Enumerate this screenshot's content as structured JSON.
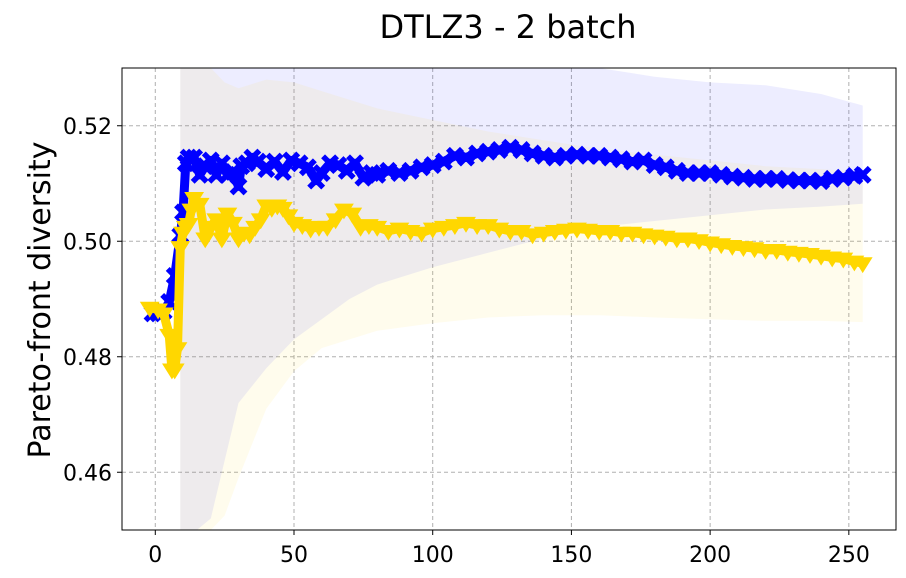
{
  "chart_data": {
    "type": "line",
    "title": "DTLZ3 - 2 batch",
    "xlabel": "",
    "ylabel": "Pareto-front diversity",
    "xlim": [
      -12,
      267
    ],
    "ylim": [
      0.45,
      0.53
    ],
    "grid": true,
    "x_ticks": [
      0,
      50,
      100,
      150,
      200,
      250
    ],
    "y_ticks": [
      0.46,
      0.48,
      0.5,
      0.52
    ],
    "y_tick_labels": [
      "0.46",
      "0.48",
      "0.50",
      "0.52"
    ],
    "series": [
      {
        "color": "#0000ff",
        "marker": "x",
        "x": [
          -1,
          1,
          3,
          5,
          7,
          9,
          10,
          11,
          12,
          14,
          16,
          18,
          20,
          22,
          24,
          26,
          28,
          30,
          31,
          33,
          35,
          37,
          40,
          43,
          46,
          49,
          52,
          55,
          58,
          60,
          63,
          66,
          69,
          72,
          75,
          78,
          80,
          84,
          88,
          92,
          96,
          100,
          104,
          108,
          112,
          116,
          120,
          124,
          128,
          132,
          136,
          140,
          144,
          148,
          152,
          156,
          160,
          164,
          168,
          172,
          176,
          180,
          184,
          188,
          192,
          196,
          200,
          204,
          208,
          212,
          216,
          220,
          224,
          228,
          232,
          236,
          240,
          244,
          248,
          252,
          255
        ],
        "y": [
          0.4875,
          0.4875,
          0.4878,
          0.4895,
          0.494,
          0.501,
          0.505,
          0.5135,
          0.5145,
          0.5145,
          0.5115,
          0.513,
          0.514,
          0.5115,
          0.5135,
          0.5115,
          0.512,
          0.5095,
          0.513,
          0.5135,
          0.5145,
          0.5138,
          0.5125,
          0.5138,
          0.512,
          0.514,
          0.5135,
          0.5128,
          0.5105,
          0.5118,
          0.5135,
          0.5132,
          0.5122,
          0.5135,
          0.511,
          0.5118,
          0.5115,
          0.5122,
          0.5118,
          0.5122,
          0.5128,
          0.5132,
          0.5138,
          0.5148,
          0.5145,
          0.5152,
          0.5155,
          0.5158,
          0.5162,
          0.5158,
          0.5152,
          0.5148,
          0.5145,
          0.5148,
          0.515,
          0.5148,
          0.5148,
          0.5145,
          0.5142,
          0.5138,
          0.514,
          0.5132,
          0.5128,
          0.5122,
          0.5118,
          0.5118,
          0.5118,
          0.5115,
          0.5112,
          0.511,
          0.5108,
          0.5108,
          0.5108,
          0.5106,
          0.5105,
          0.5105,
          0.5104,
          0.5108,
          0.511,
          0.5113,
          0.5115
        ]
      },
      {
        "color": "#ffd700",
        "marker": "v",
        "x": [
          -2,
          1,
          3,
          5,
          6,
          7,
          8,
          9,
          10,
          11,
          12,
          13,
          14,
          16,
          18,
          20,
          22,
          24,
          26,
          28,
          30,
          32,
          34,
          36,
          38,
          40,
          42,
          44,
          46,
          48,
          50,
          53,
          56,
          59,
          62,
          65,
          68,
          71,
          74,
          77,
          80,
          84,
          88,
          92,
          96,
          100,
          104,
          108,
          112,
          116,
          120,
          124,
          128,
          132,
          136,
          140,
          144,
          148,
          152,
          156,
          160,
          164,
          168,
          172,
          176,
          180,
          184,
          188,
          192,
          196,
          200,
          204,
          208,
          212,
          216,
          220,
          224,
          228,
          232,
          236,
          240,
          244,
          248,
          252,
          255
        ],
        "y": [
          0.4885,
          0.4882,
          0.4875,
          0.4838,
          0.4778,
          0.4778,
          0.4815,
          0.499,
          0.5015,
          0.5025,
          0.503,
          0.5055,
          0.5075,
          0.5065,
          0.5005,
          0.5025,
          0.5038,
          0.5005,
          0.5048,
          0.5032,
          0.5005,
          0.5015,
          0.5012,
          0.5025,
          0.5038,
          0.5062,
          0.5058,
          0.5062,
          0.5058,
          0.5045,
          0.5032,
          0.5028,
          0.5022,
          0.5025,
          0.5025,
          0.5038,
          0.5055,
          0.5048,
          0.5025,
          0.5028,
          0.5025,
          0.5018,
          0.5022,
          0.5018,
          0.5015,
          0.5022,
          0.5025,
          0.5028,
          0.5032,
          0.5028,
          0.5028,
          0.5022,
          0.5018,
          0.5018,
          0.5012,
          0.5015,
          0.5018,
          0.502,
          0.5022,
          0.502,
          0.5018,
          0.5018,
          0.5015,
          0.5015,
          0.5012,
          0.501,
          0.5008,
          0.5005,
          0.5005,
          0.5002,
          0.4998,
          0.4995,
          0.4992,
          0.499,
          0.4988,
          0.4985,
          0.4985,
          0.4982,
          0.498,
          0.4978,
          0.4975,
          0.4972,
          0.497,
          0.4965,
          0.4962
        ]
      }
    ],
    "bands": [
      {
        "color": "#0000ff",
        "opacity": 0.07,
        "x": [
          9,
          10,
          12,
          15,
          20,
          25,
          30,
          40,
          50,
          60,
          70,
          80,
          100,
          120,
          140,
          160,
          180,
          200,
          220,
          240,
          255
        ],
        "upper": [
          0.53,
          0.53,
          0.53,
          0.53,
          0.53,
          0.53,
          0.53,
          0.53,
          0.53,
          0.53,
          0.53,
          0.53,
          0.53,
          0.53,
          0.53,
          0.53,
          0.5285,
          0.5275,
          0.527,
          0.5255,
          0.5235
        ],
        "lower": [
          0.45,
          0.45,
          0.45,
          0.45,
          0.452,
          0.462,
          0.472,
          0.478,
          0.483,
          0.4865,
          0.49,
          0.4925,
          0.4955,
          0.498,
          0.5005,
          0.5025,
          0.5035,
          0.5045,
          0.5055,
          0.506,
          0.5065
        ]
      },
      {
        "color": "#ffd700",
        "opacity": 0.07,
        "x": [
          9,
          10,
          12,
          15,
          20,
          25,
          30,
          40,
          50,
          60,
          70,
          80,
          100,
          120,
          140,
          160,
          180,
          200,
          220,
          240,
          255
        ],
        "upper": [
          0.53,
          0.53,
          0.53,
          0.53,
          0.53,
          0.5275,
          0.5265,
          0.528,
          0.5275,
          0.526,
          0.5245,
          0.523,
          0.521,
          0.519,
          0.5175,
          0.516,
          0.515,
          0.514,
          0.513,
          0.5125,
          0.512
        ],
        "lower": [
          0.45,
          0.45,
          0.45,
          0.45,
          0.45,
          0.4525,
          0.459,
          0.471,
          0.4775,
          0.4815,
          0.483,
          0.4845,
          0.4858,
          0.4868,
          0.4872,
          0.4872,
          0.4868,
          0.4865,
          0.4862,
          0.4862,
          0.486
        ]
      }
    ]
  }
}
